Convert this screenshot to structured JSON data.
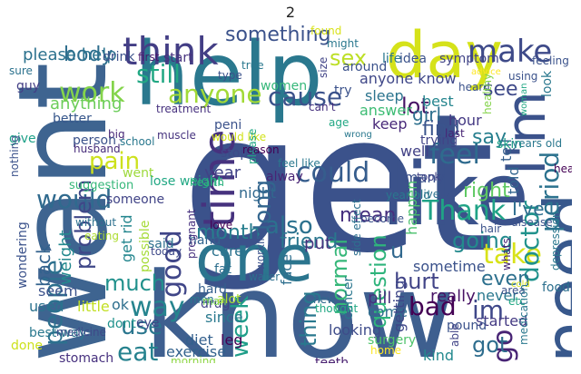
{
  "title": "2",
  "words": [
    {
      "id": "get",
      "text": "get",
      "color": "#3b528b"
    },
    {
      "id": "know",
      "text": "know",
      "color": "#3e5f8f"
    },
    {
      "id": "want",
      "text": "want",
      "color": "#3e6490"
    },
    {
      "id": "help",
      "text": "help",
      "color": "#2a788e"
    },
    {
      "id": "day",
      "text": "day",
      "color": "#d5e21a"
    },
    {
      "id": "like",
      "text": "like",
      "color": "#3b528b"
    },
    {
      "id": "need",
      "text": "need",
      "color": "#38588c"
    },
    {
      "id": "one",
      "text": "one",
      "color": "#2b758e"
    },
    {
      "id": "im_big",
      "text": "I'm",
      "color": "#3b528b"
    },
    {
      "id": "time",
      "text": "time",
      "color": "#46327e"
    },
    {
      "id": "think",
      "text": "think",
      "color": "#433e85"
    },
    {
      "id": "make",
      "text": "make",
      "color": "#3e4a89"
    },
    {
      "id": "work",
      "text": "work",
      "color": "#84d44b"
    },
    {
      "id": "anyone",
      "text": "anyone",
      "color": "#a2da37"
    },
    {
      "id": "still",
      "text": "still",
      "color": "#22a884"
    },
    {
      "id": "cause",
      "text": "cause",
      "color": "#3b528b"
    },
    {
      "id": "could",
      "text": "could",
      "color": "#365d8d"
    },
    {
      "id": "feel",
      "text": "feel",
      "color": "#2f6b8e"
    },
    {
      "id": "would",
      "text": "would",
      "color": "#306a8e"
    },
    {
      "id": "take",
      "text": "take",
      "color": "#d8e219"
    },
    {
      "id": "period",
      "text": "period",
      "color": "#2c728e"
    },
    {
      "id": "doctor",
      "text": "doctor",
      "color": "#20928c"
    },
    {
      "id": "thank",
      "text": "Thank",
      "color": "#20a386"
    },
    {
      "id": "good",
      "text": "good",
      "color": "#404688"
    },
    {
      "id": "also",
      "text": "also",
      "color": "#2c718e"
    },
    {
      "id": "much",
      "text": "much",
      "color": "#21918c"
    },
    {
      "id": "way",
      "text": "way",
      "color": "#25848e"
    },
    {
      "id": "use",
      "text": "use",
      "color": "#2a768e"
    },
    {
      "id": "eat",
      "text": "eat",
      "color": "#26828e"
    },
    {
      "id": "people",
      "text": "people",
      "color": "#2d708e"
    },
    {
      "id": "problem",
      "text": "problem",
      "color": "#3f4788"
    },
    {
      "id": "body",
      "text": "body",
      "color": "#2e6e8e"
    },
    {
      "id": "pain",
      "text": "pain",
      "color": "#cde11d"
    },
    {
      "id": "long",
      "text": "long",
      "color": "#32658e"
    },
    {
      "id": "week",
      "text": "week",
      "color": "#1f9e89"
    },
    {
      "id": "something",
      "text": "something",
      "color": "#3b528b"
    },
    {
      "id": "sex",
      "text": "sex",
      "color": "#bddf26"
    },
    {
      "id": "question",
      "text": "question",
      "color": "#2fb47c"
    },
    {
      "id": "normal",
      "text": "normal",
      "color": "#35b779"
    },
    {
      "id": "thing",
      "text": "thing",
      "color": "#29788e"
    },
    {
      "id": "go",
      "text": "go",
      "color": "#482475"
    },
    {
      "id": "im_small",
      "text": "im",
      "color": "#3f4889"
    },
    {
      "id": "got",
      "text": "got",
      "color": "#2e6d8e"
    },
    {
      "id": "going",
      "text": "going",
      "color": "#238a8d"
    },
    {
      "id": "bad",
      "text": "bad",
      "color": "#440154"
    },
    {
      "id": "mean",
      "text": "mean",
      "color": "#46307e"
    },
    {
      "id": "friend",
      "text": "friend",
      "color": "#2a778e"
    },
    {
      "id": "right",
      "text": "right",
      "color": "#5ec962"
    },
    {
      "id": "find",
      "text": "find",
      "color": "#3a548c"
    },
    {
      "id": "lot",
      "text": "lot",
      "color": "#471365"
    },
    {
      "id": "see",
      "text": "see",
      "color": "#3e4989"
    },
    {
      "id": "say",
      "text": "say",
      "color": "#277f8e"
    },
    {
      "id": "hurt",
      "text": "hurt",
      "color": "#414487"
    },
    {
      "id": "u",
      "text": "u",
      "color": "#31688e"
    },
    {
      "id": "even",
      "text": "even",
      "color": "#2d708e"
    },
    {
      "id": "month",
      "text": "month",
      "color": "#277e8e"
    },
    {
      "id": "girl",
      "text": "girl",
      "color": "#2d708e"
    },
    {
      "id": "ive",
      "text": "I've",
      "color": "#2e6e8e"
    },
    {
      "id": "please_help",
      "text": "please help",
      "color": "#2c728e"
    },
    {
      "id": "anything",
      "text": "anything",
      "color": "#6ccd5a"
    },
    {
      "id": "back",
      "text": "back",
      "color": "#33628d"
    },
    {
      "id": "weight",
      "text": "weight",
      "color": "#23898e"
    },
    {
      "id": "anyone_know",
      "text": "anyone know",
      "color": "#3f4788"
    },
    {
      "id": "sleep",
      "text": "sleep",
      "color": "#2b748e"
    },
    {
      "id": "answer",
      "text": "answer",
      "color": "#3dbc74"
    },
    {
      "id": "best",
      "text": "best",
      "color": "#25858e"
    },
    {
      "id": "hour",
      "text": "hour",
      "color": "#443983"
    },
    {
      "id": "told",
      "text": "told",
      "color": "#32648e"
    },
    {
      "id": "tell",
      "text": "tell",
      "color": "#355f8d"
    },
    {
      "id": "keep",
      "text": "keep",
      "color": "#482979"
    },
    {
      "id": "well",
      "text": "well",
      "color": "#424186"
    },
    {
      "id": "many",
      "text": "many",
      "color": "#3b518b"
    },
    {
      "id": "year",
      "text": "year",
      "color": "#414287"
    },
    {
      "id": "night",
      "text": "night",
      "color": "#31688e"
    },
    {
      "id": "cure",
      "text": "cure",
      "color": "#2c738e"
    },
    {
      "id": "put",
      "text": "put",
      "color": "#46327e"
    },
    {
      "id": "face",
      "text": "face",
      "color": "#2e6f8e"
    },
    {
      "id": "really",
      "text": "really",
      "color": "#471164"
    },
    {
      "id": "sometime",
      "text": "sometime",
      "color": "#3b528b"
    },
    {
      "id": "happen",
      "text": "happen",
      "color": "#4ac16d"
    },
    {
      "id": "never",
      "text": "never",
      "color": "#2a788e"
    },
    {
      "id": "started",
      "text": "started",
      "color": "#443a83"
    },
    {
      "id": "pill",
      "text": "pill",
      "color": "#46307e"
    },
    {
      "id": "come",
      "text": "come",
      "color": "#2e6e8e"
    },
    {
      "id": "getting",
      "text": "getting",
      "color": "#3f4788"
    },
    {
      "id": "kind",
      "text": "kind",
      "color": "#23898e"
    },
    {
      "id": "get_rid",
      "text": "get rid",
      "color": "#24868e"
    },
    {
      "id": "possible",
      "text": "possible",
      "color": "#a5db36"
    },
    {
      "id": "seem",
      "text": "seem",
      "color": "#3b528b"
    },
    {
      "id": "used",
      "text": "used",
      "color": "#2c728e"
    },
    {
      "id": "little",
      "text": "little",
      "color": "#c2df23"
    },
    {
      "id": "ok",
      "text": "ok",
      "color": "#2e6f8e"
    },
    {
      "id": "best_way",
      "text": "best way",
      "color": "#2a788e"
    },
    {
      "id": "done",
      "text": "done",
      "color": "#cde11d"
    },
    {
      "id": "stomach",
      "text": "stomach",
      "color": "#46307e"
    },
    {
      "id": "eye",
      "text": "eye",
      "color": "#3f4788"
    },
    {
      "id": "since",
      "text": "since",
      "color": "#29798e"
    },
    {
      "id": "leg",
      "text": "leg",
      "color": "#440154"
    },
    {
      "id": "diet",
      "text": "diet",
      "color": "#34608d"
    },
    {
      "id": "exercise",
      "text": "exercise",
      "color": "#33628d"
    },
    {
      "id": "morning",
      "text": "morning",
      "color": "#8ed645"
    },
    {
      "id": "teeth",
      "text": "teeth",
      "color": "#481f70"
    },
    {
      "id": "looking",
      "text": "looking",
      "color": "#3e4c8a"
    },
    {
      "id": "surgery",
      "text": "surgery",
      "color": "#4ec36b"
    },
    {
      "id": "home",
      "text": "home",
      "color": "#fde725"
    },
    {
      "id": "cancer",
      "text": "cancer",
      "color": "#2a768e"
    },
    {
      "id": "thought",
      "text": "thought",
      "color": "#22a884"
    },
    {
      "id": "new",
      "text": "new",
      "color": "#31688e"
    },
    {
      "id": "medicine",
      "text": "medicine",
      "color": "#3e4989"
    },
    {
      "id": "dont",
      "text": "dont",
      "color": "#20928c"
    },
    {
      "id": "drink",
      "text": "drink",
      "color": "#3b528b"
    },
    {
      "id": "first",
      "text": "first",
      "color": "#481a6c"
    },
    {
      "id": "start",
      "text": "start",
      "color": "#46327e"
    },
    {
      "id": "guy",
      "text": "guy",
      "color": "#433e85"
    },
    {
      "id": "better",
      "text": "better",
      "color": "#38588c"
    },
    {
      "id": "give",
      "text": "give",
      "color": "#1fa188"
    },
    {
      "id": "big",
      "text": "big",
      "color": "#482878"
    },
    {
      "id": "person",
      "text": "person",
      "color": "#3b528b"
    },
    {
      "id": "husband",
      "text": "husband",
      "color": "#472c7a"
    },
    {
      "id": "suggestion",
      "text": "suggestion",
      "color": "#35b779"
    },
    {
      "id": "school",
      "text": "school",
      "color": "#2a788e"
    },
    {
      "id": "went",
      "text": "went",
      "color": "#9dd93b"
    },
    {
      "id": "someone",
      "text": "someone",
      "color": "#414487"
    },
    {
      "id": "without",
      "text": "without",
      "color": "#2d708e"
    },
    {
      "id": "eating",
      "text": "eating",
      "color": "#addc30"
    },
    {
      "id": "nothing",
      "text": "nothing",
      "color": "#3b528b"
    },
    {
      "id": "sure",
      "text": "sure",
      "color": "#2c728e"
    },
    {
      "id": "treatment",
      "text": "treatment",
      "color": "#46307e"
    },
    {
      "id": "muscle",
      "text": "muscle",
      "color": "#46337f"
    },
    {
      "id": "lose_weight",
      "text": "lose weight",
      "color": "#22a884"
    },
    {
      "id": "health",
      "text": "health",
      "color": "#2fb47c"
    },
    {
      "id": "today",
      "text": "today",
      "color": "#3e4989"
    },
    {
      "id": "said",
      "text": "said",
      "color": "#2d708e"
    },
    {
      "id": "hand",
      "text": "hand",
      "color": "#33638d"
    },
    {
      "id": "hard",
      "text": "hard",
      "color": "#355f8d"
    },
    {
      "id": "men",
      "text": "men",
      "color": "#2a788e"
    },
    {
      "id": "drug",
      "text": "drug",
      "color": "#414487"
    },
    {
      "id": "man",
      "text": "man",
      "color": "#7ad151"
    },
    {
      "id": "pregnant",
      "text": "pregnant",
      "color": "#46307e"
    },
    {
      "id": "fat",
      "text": "fat",
      "color": "#2e6f8e"
    },
    {
      "id": "peni",
      "text": "peni",
      "color": "#3b528b"
    },
    {
      "id": "would_like",
      "text": "would like",
      "color": "#d2e21b"
    },
    {
      "id": "stop",
      "text": "stop",
      "color": "#3e4989"
    },
    {
      "id": "please",
      "text": "please",
      "color": "#22a884"
    },
    {
      "id": "reason",
      "text": "reason",
      "color": "#440154"
    },
    {
      "id": "feel_like",
      "text": "feel like",
      "color": "#2a788e"
    },
    {
      "id": "alway",
      "text": "alway",
      "color": "#482475"
    },
    {
      "id": "working",
      "text": "working",
      "color": "#3b528b"
    },
    {
      "id": "water",
      "text": "water",
      "color": "#2d708e"
    },
    {
      "id": "alot",
      "text": "alot",
      "color": "#a8db34"
    },
    {
      "id": "love",
      "text": "love",
      "color": "#440154"
    },
    {
      "id": "women",
      "text": "women",
      "color": "#35b779"
    },
    {
      "id": "true",
      "text": "true",
      "color": "#2a788e"
    },
    {
      "id": "type",
      "text": "type",
      "color": "#3b528b"
    },
    {
      "id": "size",
      "text": "size",
      "color": "#414487"
    },
    {
      "id": "found",
      "text": "found",
      "color": "#d8e219"
    },
    {
      "id": "around",
      "text": "around",
      "color": "#3b528b"
    },
    {
      "id": "life",
      "text": "life",
      "color": "#2a788e"
    },
    {
      "id": "idea",
      "text": "idea",
      "color": "#3b528b"
    },
    {
      "id": "symptom",
      "text": "symptom",
      "color": "#414487"
    },
    {
      "id": "feeling",
      "text": "feeling",
      "color": "#3b528b"
    },
    {
      "id": "might",
      "text": "might",
      "color": "#2a788e"
    },
    {
      "id": "try",
      "text": "try",
      "color": "#3b528b"
    },
    {
      "id": "cant",
      "text": "can't",
      "color": "#46307e"
    },
    {
      "id": "age",
      "text": "age",
      "color": "#22a884"
    },
    {
      "id": "wrong",
      "text": "wrong",
      "color": "#2a788e"
    },
    {
      "id": "trying",
      "text": "trying",
      "color": "#414487"
    },
    {
      "id": "last",
      "text": "last",
      "color": "#482475"
    },
    {
      "id": "heard",
      "text": "heard",
      "color": "#3b528b"
    },
    {
      "id": "advice",
      "text": "advice",
      "color": "#fde725"
    },
    {
      "id": "using",
      "text": "using",
      "color": "#3b528b"
    },
    {
      "id": "woman",
      "text": "woman",
      "color": "#22a884"
    },
    {
      "id": "healthy",
      "text": "healthy",
      "color": "#84d44b"
    },
    {
      "id": "skin",
      "text": "skin",
      "color": "#1fa188"
    },
    {
      "id": "years_old",
      "text": "years old",
      "color": "#2a788e"
    },
    {
      "id": "head",
      "text": "head",
      "color": "#440154"
    },
    {
      "id": "took",
      "text": "took",
      "color": "#414487"
    },
    {
      "id": "live",
      "text": "live",
      "color": "#2d708e"
    },
    {
      "id": "year_old",
      "text": "year old",
      "color": "#2a788e"
    },
    {
      "id": "become",
      "text": "become",
      "color": "#3b528b"
    },
    {
      "id": "side_effect",
      "text": "side effect",
      "color": "#2d708e"
    },
    {
      "id": "disease",
      "text": "disease",
      "color": "#3b528b"
    },
    {
      "id": "whats",
      "text": "whats",
      "color": "#482475"
    },
    {
      "id": "hair",
      "text": "hair",
      "color": "#3b528b"
    },
    {
      "id": "depression",
      "text": "depression",
      "color": "#2a788e"
    },
    {
      "id": "area",
      "text": "area",
      "color": "#3b528b"
    },
    {
      "id": "etc",
      "text": "etc",
      "color": "#22a884"
    },
    {
      "id": "food",
      "text": "food",
      "color": "#2d708e"
    },
    {
      "id": "cold",
      "text": "cold",
      "color": "#d8e219"
    },
    {
      "id": "pound",
      "text": "pound",
      "color": "#3b528b"
    },
    {
      "id": "able",
      "text": "able",
      "color": "#414487"
    },
    {
      "id": "medication",
      "text": "medication",
      "color": "#2a788e"
    },
    {
      "id": "look",
      "text": "look",
      "color": "#2a788e"
    },
    {
      "id": "wondering",
      "text": "wondering",
      "color": "#3b528b"
    }
  ]
}
